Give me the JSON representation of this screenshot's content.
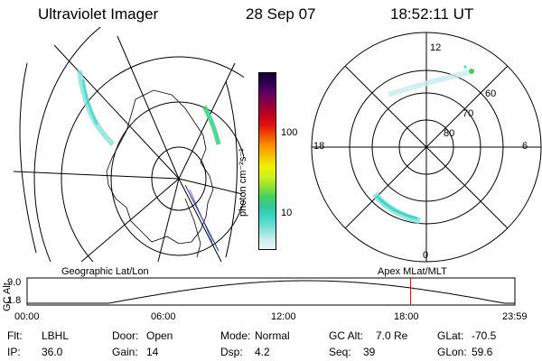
{
  "header": {
    "instrument": "Ultraviolet Imager",
    "date": "28 Sep 07",
    "time": "18:52:11 UT"
  },
  "colorbar": {
    "unit_label": "photon cm⁻²s⁻¹",
    "tick_100": "100",
    "tick_10": "10",
    "colors": [
      "#e8f6f6",
      "#c8ecec",
      "#7fe0d8",
      "#3fd8c8",
      "#30c8a0",
      "#40d060",
      "#90e030",
      "#d0f020",
      "#f0f000",
      "#f8c000",
      "#f89000",
      "#f05000",
      "#e01010",
      "#c00020",
      "#900040",
      "#600060",
      "#300050",
      "#100030"
    ]
  },
  "polar_plot": {
    "mlt_labels": {
      "top": "12",
      "bottom": "0",
      "left": "18",
      "right": "6"
    },
    "lat_labels": {
      "outer": "60",
      "mid": "70",
      "inner": "80"
    }
  },
  "panel_labels": {
    "left": "Geographic Lat/Lon",
    "right": "Apex MLat/MLT"
  },
  "altitude_chart": {
    "axis_title": "GC Alt",
    "y_ticks": [
      "9.0",
      "1.8"
    ],
    "x_ticks": [
      "00:00",
      "06:00",
      "12:00",
      "18:00",
      "23:59"
    ],
    "current_time_marker_hours": 18.87
  },
  "info_rows": [
    [
      {
        "label": "Flt:",
        "value": "LBHL"
      },
      {
        "label": "Door:",
        "value": "Open"
      },
      {
        "label": "Mode:",
        "value": "Normal"
      },
      {
        "label": "GC Alt:",
        "value": "7.0 Re"
      },
      {
        "label": "GLat:",
        "value": "-70.5"
      }
    ],
    [
      {
        "label": "IP:",
        "value": "36.0"
      },
      {
        "label": "Gain:",
        "value": "14"
      },
      {
        "label": "Dsp:",
        "value": "4.2"
      },
      {
        "label": "Seq:",
        "value": "39"
      },
      {
        "label": "GLon:",
        "value": "59.6"
      }
    ]
  ]
}
